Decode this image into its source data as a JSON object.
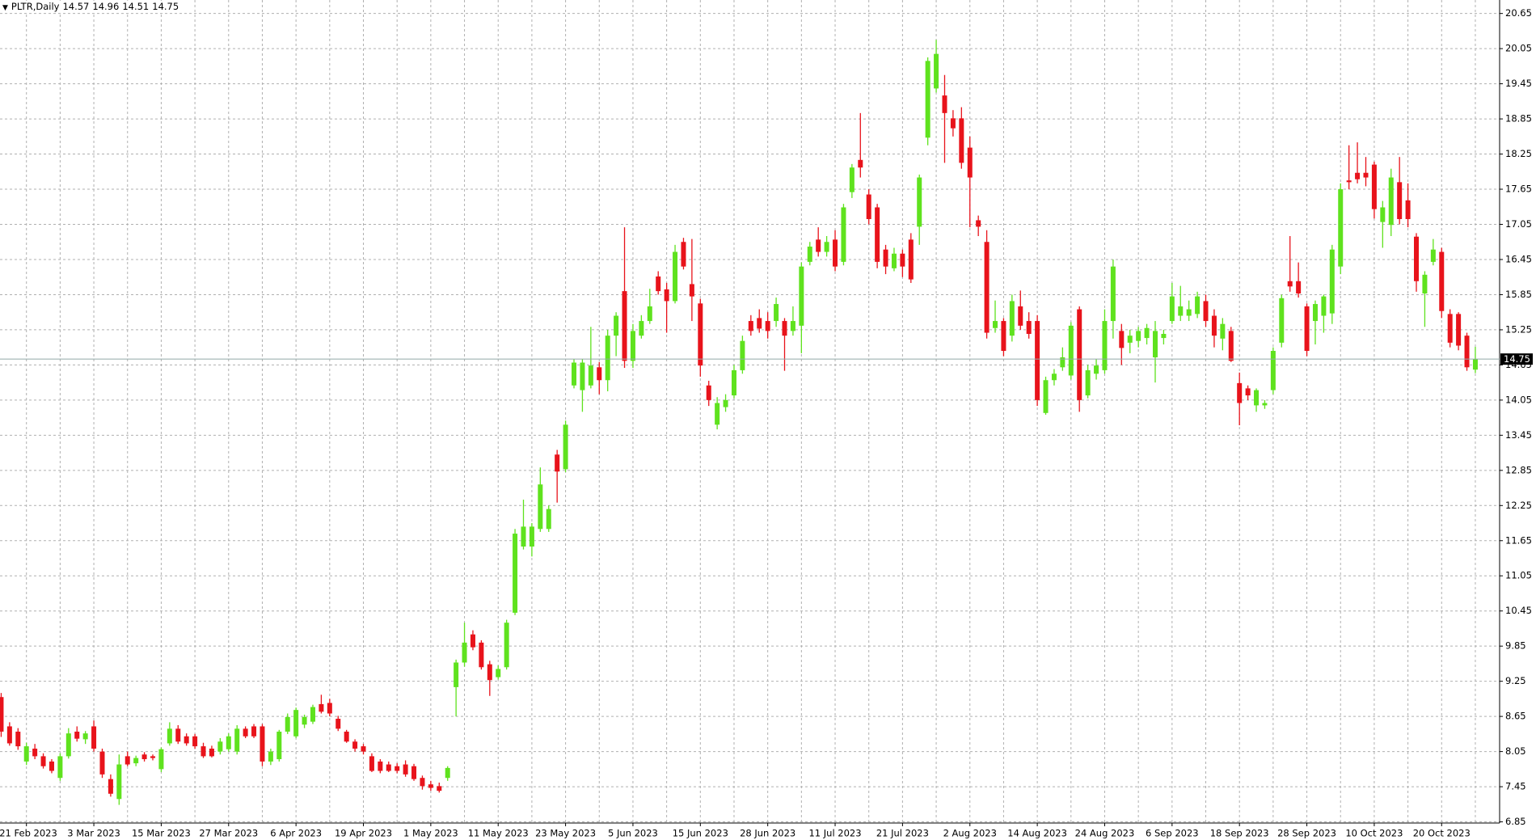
{
  "chart_data": {
    "type": "candlestick",
    "title": "PLTR,Daily",
    "categories": [
      null,
      null,
      null,
      "21 Feb 2023",
      null,
      null,
      null,
      null,
      null,
      null,
      null,
      "3 Mar 2023",
      null,
      null,
      null,
      null,
      null,
      null,
      null,
      "15 Mar 2023",
      null,
      null,
      null,
      null,
      null,
      null,
      null,
      "27 Mar 2023",
      null,
      null,
      null,
      null,
      null,
      null,
      null,
      "6 Apr 2023",
      null,
      null,
      null,
      null,
      null,
      null,
      null,
      "19 Apr 2023",
      null,
      null,
      null,
      null,
      null,
      null,
      null,
      "1 May 2023",
      null,
      null,
      null,
      null,
      null,
      null,
      null,
      "11 May 2023",
      null,
      null,
      null,
      null,
      null,
      null,
      null,
      "23 May 2023",
      null,
      null,
      null,
      null,
      null,
      null,
      null,
      "5 Jun 2023",
      null,
      null,
      null,
      null,
      null,
      null,
      null,
      "15 Jun 2023",
      null,
      null,
      null,
      null,
      null,
      null,
      null,
      "28 Jun 2023",
      null,
      null,
      null,
      null,
      null,
      null,
      null,
      "11 Jul 2023",
      null,
      null,
      null,
      null,
      null,
      null,
      null,
      "21 Jul 2023",
      null,
      null,
      null,
      null,
      null,
      null,
      null,
      "2 Aug 2023",
      null,
      null,
      null,
      null,
      null,
      null,
      null,
      "14 Aug 2023",
      null,
      null,
      null,
      null,
      null,
      null,
      null,
      "24 Aug 2023",
      null,
      null,
      null,
      null,
      null,
      null,
      null,
      "6 Sep 2023",
      null,
      null,
      null,
      null,
      null,
      null,
      null,
      "18 Sep 2023",
      null,
      null,
      null,
      null,
      null,
      null,
      null,
      "28 Sep 2023",
      null,
      null,
      null,
      null,
      null,
      null,
      null,
      "10 Oct 2023",
      null,
      null,
      null,
      null,
      null,
      null,
      null,
      "20 Oct 2023",
      null,
      null,
      null,
      null
    ],
    "open": [
      8.98,
      8.48,
      8.39,
      7.88,
      8.1,
      7.97,
      7.88,
      7.6,
      7.97,
      8.39,
      8.26,
      8.48,
      8.05,
      7.58,
      7.24,
      7.97,
      7.85,
      8.0,
      7.97,
      7.75,
      8.19,
      8.44,
      8.31,
      8.31,
      8.14,
      8.1,
      8.05,
      8.09,
      8.05,
      8.44,
      8.48,
      8.48,
      7.88,
      7.92,
      8.39,
      8.31,
      8.51,
      8.56,
      8.86,
      8.88,
      8.61,
      8.39,
      8.22,
      8.14,
      7.97,
      7.88,
      7.83,
      7.8,
      7.83,
      7.8,
      7.6,
      7.49,
      7.46,
      7.6,
      9.15,
      9.57,
      10.05,
      9.91,
      9.54,
      9.32,
      9.49,
      10.42,
      11.55,
      11.55,
      11.85,
      11.85,
      13.12,
      12.87,
      14.3,
      14.22,
      14.3,
      14.61,
      14.39,
      15.15,
      15.91,
      14.72,
      15.15,
      15.4,
      16.16,
      15.94,
      15.74,
      16.75,
      16.03,
      15.7,
      14.3,
      13.63,
      13.93,
      14.13,
      14.56,
      15.4,
      15.45,
      15.4,
      15.4,
      15.4,
      15.23,
      15.32,
      16.41,
      16.79,
      16.58,
      16.79,
      16.41,
      17.6,
      18.15,
      17.56,
      17.34,
      16.62,
      16.3,
      16.55,
      16.79,
      17.01,
      18.53,
      19.37,
      19.25,
      18.86,
      18.86,
      18.36,
      17.12,
      16.75,
      15.28,
      15.4,
      15.15,
      15.65,
      15.4,
      15.4,
      13.83,
      14.39,
      14.61,
      14.47,
      15.6,
      14.13,
      14.5,
      14.56,
      15.4,
      15.23,
      15.03,
      15.06,
      15.11,
      14.78,
      15.11,
      15.4,
      15.49,
      15.49,
      15.52,
      15.74,
      15.49,
      15.1,
      15.23,
      14.34,
      14.25,
      13.96,
      13.96,
      14.22,
      15.03,
      16.08,
      16.08,
      15.65,
      15.4,
      15.49,
      15.53,
      16.33,
      17.8,
      17.93,
      17.93,
      18.07,
      17.09,
      17.04,
      17.77,
      17.46,
      16.84,
      15.87,
      16.41,
      16.58,
      15.52,
      15.52,
      15.15,
      14.57
    ],
    "high": [
      9.05,
      8.55,
      8.45,
      8.2,
      8.18,
      8.02,
      7.92,
      8.02,
      8.45,
      8.48,
      8.4,
      8.58,
      8.1,
      7.66,
      8.0,
      8.05,
      7.98,
      8.04,
      8.0,
      8.12,
      8.55,
      8.5,
      8.36,
      8.35,
      8.2,
      8.15,
      8.28,
      8.36,
      8.5,
      8.48,
      8.52,
      8.52,
      8.1,
      8.42,
      8.7,
      8.8,
      8.68,
      8.85,
      9.02,
      8.95,
      8.66,
      8.42,
      8.26,
      8.18,
      8.02,
      7.92,
      7.88,
      7.85,
      7.9,
      7.84,
      7.64,
      7.55,
      7.52,
      7.8,
      9.62,
      10.25,
      10.12,
      9.95,
      9.6,
      9.52,
      10.3,
      11.85,
      12.35,
      11.95,
      12.9,
      12.25,
      13.2,
      13.7,
      14.75,
      14.75,
      15.3,
      14.7,
      15.25,
      15.55,
      17.0,
      15.35,
      15.5,
      15.95,
      16.25,
      16.05,
      16.7,
      16.82,
      16.8,
      15.78,
      14.38,
      14.1,
      14.15,
      14.65,
      15.15,
      15.5,
      15.6,
      15.55,
      15.8,
      15.45,
      15.65,
      16.4,
      16.75,
      17.0,
      16.85,
      16.95,
      17.4,
      18.08,
      18.95,
      17.65,
      17.4,
      16.7,
      16.65,
      16.62,
      16.9,
      17.9,
      19.9,
      20.2,
      19.6,
      19.0,
      19.05,
      18.55,
      17.2,
      16.95,
      15.75,
      15.45,
      15.85,
      15.92,
      15.55,
      15.5,
      14.45,
      14.58,
      14.95,
      15.38,
      15.65,
      14.65,
      14.75,
      15.6,
      16.45,
      15.35,
      15.25,
      15.3,
      15.35,
      15.4,
      15.25,
      16.05,
      16.0,
      15.75,
      15.9,
      15.85,
      15.6,
      15.45,
      15.3,
      14.52,
      14.3,
      14.25,
      14.05,
      14.95,
      15.85,
      16.85,
      16.4,
      15.7,
      15.75,
      15.85,
      16.7,
      17.75,
      18.4,
      18.45,
      18.2,
      18.12,
      17.45,
      18.0,
      18.2,
      17.75,
      16.9,
      16.25,
      16.8,
      16.65,
      15.6,
      15.55,
      15.2,
      14.96
    ],
    "low": [
      8.3,
      8.15,
      8.08,
      7.82,
      7.92,
      7.76,
      7.68,
      7.55,
      7.93,
      8.22,
      8.18,
      8.05,
      7.6,
      7.28,
      7.14,
      7.8,
      7.8,
      7.88,
      7.9,
      7.7,
      8.15,
      8.18,
      8.15,
      8.1,
      7.94,
      7.95,
      8.0,
      8.05,
      8.0,
      8.28,
      8.28,
      7.8,
      7.82,
      7.88,
      8.35,
      8.28,
      8.45,
      8.52,
      8.7,
      8.65,
      8.4,
      8.2,
      8.05,
      8.0,
      7.7,
      7.68,
      7.7,
      7.68,
      7.62,
      7.55,
      7.4,
      7.38,
      7.35,
      7.55,
      8.65,
      9.5,
      9.78,
      9.45,
      9.0,
      9.28,
      9.45,
      10.38,
      11.5,
      11.38,
      11.8,
      11.8,
      12.3,
      12.82,
      14.25,
      13.85,
      14.25,
      14.15,
      14.2,
      14.8,
      14.6,
      14.6,
      15.1,
      15.35,
      15.85,
      15.2,
      15.7,
      16.28,
      15.4,
      14.45,
      13.95,
      13.55,
      13.85,
      14.08,
      14.5,
      15.15,
      15.2,
      15.1,
      15.3,
      14.55,
      15.15,
      14.85,
      16.35,
      16.5,
      16.5,
      16.25,
      16.35,
      17.5,
      17.85,
      17.05,
      16.3,
      16.2,
      16.25,
      16.15,
      16.05,
      16.7,
      18.4,
      19.3,
      18.1,
      18.55,
      18.0,
      17.0,
      16.85,
      15.1,
      15.2,
      14.8,
      15.05,
      15.25,
      15.1,
      13.95,
      13.8,
      14.3,
      14.55,
      14.4,
      13.85,
      14.08,
      14.4,
      14.5,
      15.1,
      14.65,
      14.85,
      14.95,
      15.0,
      14.35,
      15.0,
      15.35,
      15.4,
      15.4,
      15.45,
      15.3,
      14.95,
      14.9,
      14.7,
      13.62,
      14.05,
      13.85,
      13.9,
      14.15,
      14.95,
      15.9,
      15.8,
      14.8,
      15.0,
      15.2,
      15.35,
      16.2,
      17.65,
      17.75,
      17.7,
      17.15,
      16.65,
      16.85,
      17.05,
      17.0,
      15.9,
      15.3,
      16.35,
      15.45,
      14.95,
      14.9,
      14.55,
      14.51
    ],
    "close": [
      8.39,
      8.19,
      8.14,
      8.14,
      7.97,
      7.8,
      7.72,
      7.97,
      8.36,
      8.27,
      8.36,
      8.1,
      7.66,
      7.33,
      7.83,
      7.83,
      7.94,
      7.92,
      7.94,
      8.09,
      8.44,
      8.22,
      8.19,
      8.14,
      7.97,
      7.97,
      8.22,
      8.31,
      8.44,
      8.31,
      8.31,
      7.88,
      8.05,
      8.39,
      8.64,
      8.76,
      8.64,
      8.81,
      8.73,
      8.7,
      8.44,
      8.22,
      8.1,
      8.05,
      7.72,
      7.72,
      7.72,
      7.72,
      7.66,
      7.58,
      7.46,
      7.43,
      7.38,
      7.77,
      9.57,
      9.91,
      9.83,
      9.49,
      9.27,
      9.46,
      10.25,
      11.77,
      11.89,
      11.89,
      12.61,
      12.19,
      12.83,
      13.63,
      14.69,
      14.69,
      14.64,
      14.39,
      15.15,
      15.49,
      14.72,
      15.23,
      15.4,
      15.65,
      15.91,
      15.74,
      16.58,
      16.33,
      15.82,
      14.64,
      14.05,
      14.0,
      14.05,
      14.56,
      15.06,
      15.23,
      15.27,
      15.23,
      15.69,
      15.15,
      15.4,
      16.33,
      16.67,
      16.58,
      16.75,
      16.33,
      17.34,
      18.02,
      18.02,
      17.14,
      16.41,
      16.33,
      16.55,
      16.33,
      16.11,
      17.85,
      19.84,
      19.96,
      18.95,
      18.69,
      18.1,
      17.85,
      17.01,
      15.2,
      15.4,
      14.89,
      15.74,
      15.32,
      15.18,
      14.05,
      14.39,
      14.5,
      14.78,
      15.32,
      14.05,
      14.56,
      14.64,
      15.4,
      16.33,
      14.94,
      15.15,
      15.23,
      15.28,
      15.23,
      15.18,
      15.82,
      15.65,
      15.6,
      15.82,
      15.4,
      15.15,
      15.35,
      14.72,
      14.0,
      14.13,
      14.22,
      14.0,
      14.89,
      15.79,
      15.99,
      15.87,
      14.89,
      15.69,
      15.82,
      16.62,
      17.65,
      17.77,
      17.82,
      17.85,
      17.31,
      17.34,
      17.85,
      17.14,
      17.14,
      16.08,
      16.19,
      16.62,
      15.57,
      15.03,
      14.98,
      14.61,
      14.75
    ],
    "up_color": "#5fe21e",
    "down_color": "#e8131b",
    "ylim": [
      6.83,
      20.88
    ],
    "yticks": [
      6.85,
      7.45,
      8.05,
      8.65,
      9.25,
      9.85,
      10.45,
      11.05,
      11.65,
      12.25,
      12.85,
      13.45,
      14.05,
      14.65,
      15.25,
      15.85,
      16.45,
      17.05,
      17.65,
      18.25,
      18.85,
      19.45,
      20.05,
      20.65
    ],
    "grid": true,
    "grid_every": 4,
    "last_price_line": true,
    "last_price_color": "#92a9a6"
  }
}
